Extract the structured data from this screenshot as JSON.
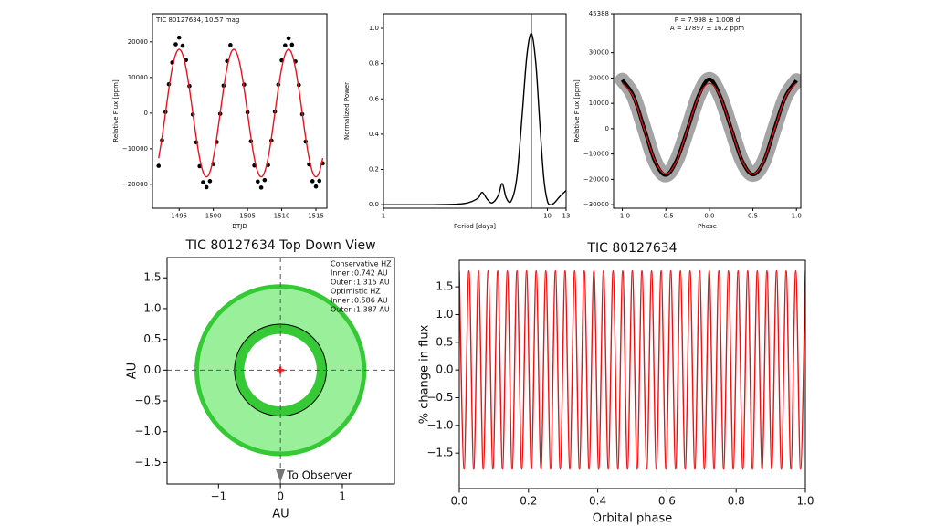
{
  "chart_data": [
    {
      "type": "scatter",
      "annotation": "TIC 80127634, 10.57 mag",
      "xlabel": "BTJD",
      "ylabel": "Relative Flux [ppm]",
      "xlim": [
        1491.1,
        1516.6
      ],
      "ylim": [
        -26700,
        27900
      ],
      "xticks": [
        1495,
        1500,
        1505,
        1510,
        1515
      ],
      "yticks": [
        {
          "value": -20000,
          "label": "−20000"
        },
        {
          "value": -10000,
          "label": "−10000"
        },
        0,
        10000,
        20000
      ],
      "color": "#000000",
      "model_color": "#e8141a",
      "x": [
        1492,
        1492.5,
        1493,
        1493.5,
        1494,
        1494.5,
        1495,
        1495.5,
        1496,
        1496.5,
        1497,
        1497.5,
        1498,
        1498.5,
        1499,
        1499.5,
        1500,
        1500.5,
        1501,
        1501.5,
        1502,
        1502.5,
        1503,
        1503.5,
        1504,
        1504.5,
        1505,
        1505.5,
        1506,
        1506.5,
        1507,
        1507.5,
        1508,
        1508.5,
        1509,
        1509.5,
        1510,
        1510.5,
        1511,
        1511.5,
        1512,
        1512.5,
        1513,
        1513.5,
        1514,
        1514.5,
        1515,
        1515.5,
        1516
      ],
      "values": [
        -14800,
        -7600,
        300,
        8100,
        14200,
        19300,
        21200,
        18900,
        14900,
        7600,
        -400,
        -8200,
        -14900,
        -19400,
        -20800,
        -19100,
        -14300,
        -8100,
        -200,
        7700,
        14600,
        19100,
        null,
        null,
        null,
        8000,
        200,
        -7900,
        -14700,
        -19200,
        -20900,
        -18800,
        -14600,
        -7700,
        400,
        8000,
        14800,
        19000,
        21000,
        19200,
        14500,
        7900,
        -300,
        -8000,
        -14400,
        -19100,
        -20600,
        -19000,
        -14100
      ],
      "model_values": [
        -12660,
        -6850,
        0,
        6850,
        12660,
        16540,
        17900,
        16540,
        12660,
        6850,
        0,
        -6850,
        -12660,
        -16540,
        -17900,
        -16540,
        -12660,
        -6850,
        0,
        6850,
        12660,
        16540,
        17900,
        16540,
        12660,
        6850,
        0,
        -6850,
        -12660,
        -16540,
        -17900,
        -16540,
        -12660,
        -6850,
        0,
        6850,
        12660,
        16540,
        17900,
        16540,
        12660,
        6850,
        0,
        -6850,
        -12660,
        -16540,
        -17900,
        -16540,
        -12660
      ]
    },
    {
      "type": "line",
      "xlabel": "Period [days]",
      "ylabel": "Normalized Power",
      "xscale": "log",
      "xlim": [
        1,
        13
      ],
      "ylim": [
        -0.02,
        1.083
      ],
      "xticks": [
        1,
        10,
        13
      ],
      "yticks": [
        {
          "value": 0,
          "label": "0.0"
        },
        0.2,
        0.4,
        0.6,
        0.8,
        {
          "value": 1,
          "label": "1.0"
        }
      ],
      "color": "#000000",
      "marker_color": "#888888",
      "period_marker": 7.998,
      "x": [
        1,
        2,
        3,
        3.5,
        3.8,
        4,
        4.3,
        4.6,
        5,
        5.3,
        5.6,
        6,
        6.5,
        7,
        7.5,
        8,
        8.5,
        9,
        9.5,
        10,
        10.5,
        11,
        12,
        13
      ],
      "values": [
        0,
        0,
        0.005,
        0.02,
        0.04,
        0.07,
        0.03,
        0.01,
        0.05,
        0.12,
        0.04,
        0.02,
        0.15,
        0.5,
        0.85,
        0.97,
        0.8,
        0.45,
        0.15,
        0.02,
        0,
        0.01,
        0.05,
        0.08
      ]
    },
    {
      "type": "line",
      "annotations": [
        "P = 7.998 ± 1.008 d",
        "A = 17897 ± 16.2 ppm"
      ],
      "xlabel": "Phase",
      "ylabel": "Relative Flux [ppm]",
      "xlim": [
        -1.1,
        1.05
      ],
      "ylim": [
        -31400,
        45388
      ],
      "xticks": [
        {
          "value": -1,
          "label": "−1.0"
        },
        {
          "value": -0.5,
          "label": "−0.5"
        },
        {
          "value": 0,
          "label": "0.0"
        },
        0.5,
        {
          "value": 1,
          "label": "1.0"
        }
      ],
      "yticks": [
        {
          "value": -30000,
          "label": "−30000"
        },
        {
          "value": -20000,
          "label": "−20000"
        },
        {
          "value": -10000,
          "label": "−10000"
        },
        0,
        10000,
        20000,
        30000,
        45388
      ],
      "color": "#000000",
      "spread_color": "#9a9a9a",
      "model_color": "#e8141a",
      "x": [
        -1,
        -0.875,
        -0.75,
        -0.625,
        -0.5,
        -0.375,
        -0.25,
        -0.125,
        0,
        0.125,
        0.25,
        0.375,
        0.5,
        0.625,
        0.75,
        0.875,
        1
      ],
      "values": [
        19200,
        13100,
        300,
        -12900,
        -18300,
        -12400,
        -200,
        12900,
        19500,
        12800,
        100,
        -12600,
        -18100,
        -12900,
        200,
        12700,
        19000
      ],
      "model_values": [
        17897,
        12655,
        0,
        -12655,
        -17897,
        -12655,
        0,
        12655,
        17897,
        12655,
        0,
        -12655,
        -17897,
        -12655,
        0,
        12655,
        17897
      ]
    },
    {
      "type": "orbit",
      "title": "TIC 80127634 Top Down View",
      "xlabel": "AU",
      "ylabel": "AU",
      "xlim": [
        -1.83,
        1.84
      ],
      "ylim": [
        -1.85,
        1.83
      ],
      "xticks": [
        {
          "value": -1,
          "label": "−1"
        },
        0,
        1
      ],
      "yticks": [
        {
          "value": -1.5,
          "label": "−1.5"
        },
        {
          "value": -1,
          "label": "−1.0"
        },
        {
          "value": -0.5,
          "label": "−0.5"
        },
        {
          "value": 0,
          "label": "0.0"
        },
        0.5,
        {
          "value": 1,
          "label": "1.0"
        },
        1.5
      ],
      "zones": [
        {
          "name": "Conservative HZ",
          "inner": 0.742,
          "outer": 1.315,
          "inner_label": " Inner :0.742 AU",
          "outer_label": " Outer :1.315 AU",
          "color": "#9af09a"
        },
        {
          "name": "Optimistic HZ",
          "inner": 0.586,
          "outer": 1.387,
          "inner_label": " Inner :0.586 AU",
          "outer_label": " Outer :1.387 AU",
          "color": "#35c935"
        }
      ],
      "observer_label": "To Observer"
    },
    {
      "type": "line",
      "title": "TIC 80127634",
      "xlabel": "Orbital phase",
      "ylabel": "% change in flux",
      "xlim": [
        0,
        1
      ],
      "ylim": [
        -2.14,
        1.98
      ],
      "xticks": [
        {
          "value": 0,
          "label": "0.0"
        },
        0.2,
        0.4,
        0.6,
        0.8,
        {
          "value": 1,
          "label": "1.0"
        }
      ],
      "yticks": [
        {
          "value": -1.5,
          "label": "−1.5"
        },
        {
          "value": -1,
          "label": "−1.0"
        },
        {
          "value": -0.5,
          "label": "−0.5"
        },
        {
          "value": 0,
          "label": "0.0"
        },
        0.5,
        {
          "value": 1,
          "label": "1.0"
        },
        1.5
      ],
      "color": "#ee1111",
      "x": [
        0,
        0.0139,
        0.0278,
        0.0417,
        0.0556,
        0.0694,
        0.0833,
        0.0972,
        0.1111,
        0.125,
        0.1389,
        0.1528,
        0.1667,
        0.1806,
        0.1944,
        0.2083,
        0.2222,
        0.2361,
        0.25,
        0.2639,
        0.2778,
        0.2917,
        0.3056,
        0.3194,
        0.3333,
        0.3472,
        0.3611,
        0.375,
        0.3889,
        0.4028,
        0.4167,
        0.4306,
        0.4444,
        0.4583,
        0.4722,
        0.4861,
        0.5,
        0.5139,
        0.5278,
        0.5417,
        0.5556,
        0.5694,
        0.5833,
        0.5972,
        0.6111,
        0.625,
        0.6389,
        0.6528,
        0.6667,
        0.6806,
        0.6944,
        0.7083,
        0.7222,
        0.7361,
        0.75,
        0.7639,
        0.7778,
        0.7917,
        0.8056,
        0.8194,
        0.8333,
        0.8472,
        0.8611,
        0.875,
        0.8889,
        0.9028,
        0.9167,
        0.9306,
        0.9444,
        0.9583,
        0.9722,
        0.9861,
        1
      ],
      "values": [
        1.79,
        -1.79,
        1.79,
        -1.79,
        1.79,
        -1.79,
        1.79,
        -1.79,
        1.79,
        -1.79,
        1.79,
        -1.79,
        1.79,
        -1.79,
        1.79,
        -1.79,
        1.79,
        -1.79,
        1.79,
        -1.79,
        1.79,
        -1.79,
        1.79,
        -1.79,
        1.79,
        -1.79,
        1.79,
        -1.79,
        1.79,
        -1.79,
        1.79,
        -1.79,
        1.79,
        -1.79,
        1.79,
        -1.79,
        1.79,
        -1.79,
        1.79,
        -1.79,
        1.79,
        -1.79,
        1.79,
        -1.79,
        1.79,
        -1.79,
        1.79,
        -1.79,
        1.79,
        -1.79,
        1.79,
        -1.79,
        1.79,
        -1.79,
        1.79,
        -1.79,
        1.79,
        -1.79,
        1.79,
        -1.79,
        1.79,
        -1.79,
        1.79,
        -1.79,
        1.79,
        -1.79,
        1.79,
        -1.79,
        1.79,
        -1.79,
        1.79,
        -1.79,
        1.79
      ]
    }
  ]
}
